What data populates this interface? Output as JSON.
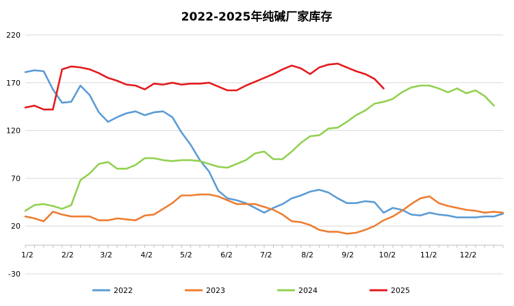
{
  "chart_data": {
    "type": "line",
    "title": "2022-2025年纯碱厂家库存",
    "xlabel": "",
    "ylabel": "",
    "ylim": [
      -30,
      220
    ],
    "y_ticks": [
      -30,
      20,
      70,
      120,
      170,
      220
    ],
    "x_tick_labels": [
      "1/2",
      "2/2",
      "3/2",
      "4/2",
      "5/2",
      "6/2",
      "7/2",
      "8/2",
      "9/2",
      "10/2",
      "11/2",
      "12/2"
    ],
    "grid": "horizontal",
    "legend_position": "bottom",
    "series": [
      {
        "name": "2022",
        "color": "#5b9bd5",
        "values": [
          181,
          183,
          182,
          163,
          149,
          150,
          167,
          157,
          139,
          129,
          134,
          138,
          140,
          136,
          139,
          140,
          134,
          118,
          105,
          89,
          77,
          57,
          49,
          47,
          44,
          39,
          34,
          39,
          43,
          49,
          52,
          56,
          58,
          55,
          49,
          44,
          44,
          46,
          45,
          34,
          39,
          37,
          32,
          31,
          34,
          32,
          31,
          29,
          29,
          29,
          30,
          30,
          33
        ]
      },
      {
        "name": "2023",
        "color": "#ed7d31",
        "values": [
          30,
          28,
          25,
          35,
          32,
          30,
          30,
          30,
          26,
          26,
          28,
          27,
          26,
          31,
          32,
          38,
          44,
          52,
          52,
          53,
          53,
          51,
          47,
          43,
          43,
          43,
          40,
          37,
          32,
          25,
          24,
          21,
          16,
          14,
          14,
          12,
          13,
          16,
          20,
          26,
          30,
          36,
          43,
          49,
          51,
          44,
          41,
          39,
          37,
          36,
          34,
          35,
          34
        ]
      },
      {
        "name": "2024",
        "color": "#92d050",
        "values": [
          36,
          42,
          43,
          41,
          38,
          42,
          68,
          75,
          85,
          87,
          80,
          80,
          84,
          91,
          91,
          89,
          88,
          89,
          89,
          88,
          85,
          82,
          81,
          85,
          89,
          96,
          98,
          90,
          90,
          98,
          107,
          114,
          115,
          122,
          123,
          129,
          136,
          141,
          148,
          150,
          153,
          160,
          165,
          167,
          167,
          164,
          160,
          164,
          159,
          162,
          156,
          146
        ]
      },
      {
        "name": "2025",
        "color": "#e31a1c",
        "values": [
          144,
          146,
          142,
          142,
          184,
          187,
          186,
          184,
          180,
          175,
          172,
          168,
          167,
          163,
          169,
          168,
          170,
          168,
          169,
          169,
          170,
          166,
          162,
          162,
          167,
          171,
          175,
          179,
          184,
          188,
          185,
          179,
          186,
          189,
          190,
          186,
          182,
          179,
          174,
          164
        ]
      }
    ]
  }
}
